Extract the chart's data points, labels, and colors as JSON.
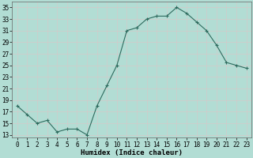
{
  "x": [
    0,
    1,
    2,
    3,
    4,
    5,
    6,
    7,
    8,
    9,
    10,
    11,
    12,
    13,
    14,
    15,
    16,
    17,
    18,
    19,
    20,
    21,
    22,
    23
  ],
  "y": [
    18,
    16.5,
    15,
    15.5,
    13.5,
    14,
    14,
    13,
    18,
    21.5,
    25,
    31,
    31.5,
    33,
    33.5,
    33.5,
    35,
    34,
    32.5,
    31,
    28.5,
    25.5,
    25,
    24.5
  ],
  "line_color": "#2e6b5e",
  "marker_color": "#2e6b5e",
  "bg_color": "#b2ddd4",
  "grid_color": "#d4c9c9",
  "xlabel": "Humidex (Indice chaleur)",
  "xlim": [
    -0.5,
    23.5
  ],
  "ylim": [
    12.5,
    36
  ],
  "yticks": [
    13,
    15,
    17,
    19,
    21,
    23,
    25,
    27,
    29,
    31,
    33,
    35
  ],
  "xticks": [
    0,
    1,
    2,
    3,
    4,
    5,
    6,
    7,
    8,
    9,
    10,
    11,
    12,
    13,
    14,
    15,
    16,
    17,
    18,
    19,
    20,
    21,
    22,
    23
  ],
  "xlabel_fontsize": 6.5,
  "tick_fontsize": 5.5
}
